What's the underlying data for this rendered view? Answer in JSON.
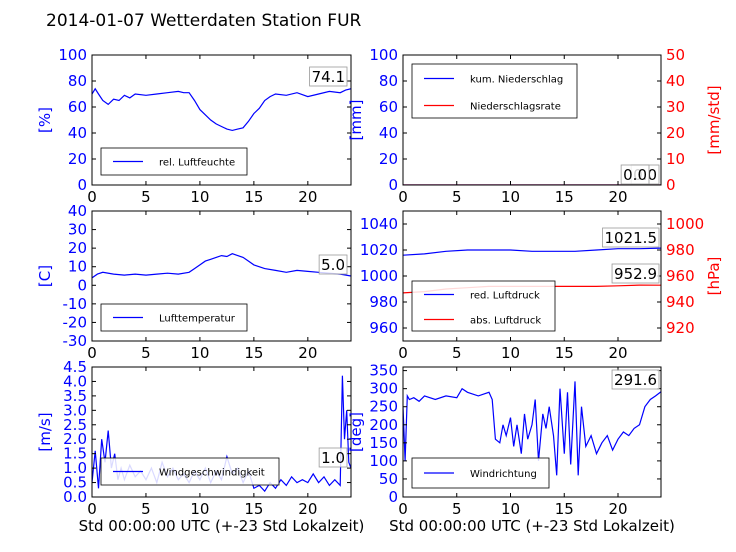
{
  "title": "2014-01-07 Wetterdaten Station FUR",
  "xlabel": "Std 00:00:00 UTC (+-23 Std Lokalzeit)",
  "colors": {
    "blue": "#0000ff",
    "red": "#ff0000"
  },
  "chart_data": [
    {
      "type": "line",
      "ylabel": "[%]",
      "ylim": [
        0,
        100
      ],
      "yticks": [
        0,
        20,
        40,
        60,
        80,
        100
      ],
      "xlim": [
        0,
        24
      ],
      "xticks": [
        0,
        5,
        10,
        15,
        20
      ],
      "legend": "bottom-left",
      "last_value_label": "74.1",
      "series": [
        {
          "name": "rel. Luftfeuchte",
          "color": "#0000ff",
          "x": [
            0,
            0.3,
            0.6,
            1,
            1.5,
            2,
            2.5,
            3,
            3.5,
            4,
            5,
            6,
            7,
            8,
            8.5,
            9,
            9.5,
            10,
            10.5,
            11,
            11.5,
            12,
            12.5,
            13,
            13.5,
            14,
            14.5,
            15,
            15.5,
            16,
            16.5,
            17,
            18,
            19,
            20,
            21,
            22,
            23,
            23.5,
            24
          ],
          "y": [
            70,
            74,
            70,
            65,
            62,
            66,
            65,
            69,
            67,
            70,
            69,
            70,
            71,
            72,
            71,
            71,
            65,
            58,
            54,
            50,
            47,
            45,
            43,
            42,
            43,
            44,
            49,
            55,
            59,
            65,
            68,
            70,
            69,
            71,
            68,
            70,
            72,
            71,
            73,
            74.1
          ]
        }
      ]
    },
    {
      "type": "line",
      "ylabel": "[mm]",
      "ylim": [
        0,
        100
      ],
      "yticks": [
        0,
        20,
        40,
        60,
        80,
        100
      ],
      "ylabel2": "[mm/std]",
      "ylim2": [
        0,
        50
      ],
      "yticks2": [
        0,
        10,
        20,
        30,
        40,
        50
      ],
      "xlim": [
        0,
        24
      ],
      "xticks": [
        0,
        5,
        10,
        15,
        20
      ],
      "legend": "top-left",
      "last_value_label": "0.0",
      "last_value_label2": "0.0",
      "series": [
        {
          "name": "kum. Niederschlag",
          "color": "#0000ff",
          "axis": "left",
          "x": [
            0,
            24
          ],
          "y": [
            0,
            0
          ]
        },
        {
          "name": "Niederschlagsrate",
          "color": "#ff0000",
          "axis": "right",
          "x": [
            0,
            24
          ],
          "y": [
            0,
            0
          ]
        }
      ]
    },
    {
      "type": "line",
      "ylabel": "[C]",
      "ylim": [
        -30,
        40
      ],
      "yticks": [
        -30,
        -20,
        -10,
        0,
        10,
        20,
        30,
        40
      ],
      "xlim": [
        0,
        24
      ],
      "xticks": [
        0,
        5,
        10,
        15,
        20
      ],
      "legend": "bottom-left",
      "last_value_label": "5.0",
      "series": [
        {
          "name": "Lufttemperatur",
          "color": "#0000ff",
          "x": [
            0,
            0.5,
            1,
            2,
            3,
            4,
            5,
            6,
            7,
            8,
            9,
            9.5,
            10,
            10.5,
            11,
            11.5,
            12,
            12.5,
            13,
            13.5,
            14,
            14.5,
            15,
            16,
            17,
            18,
            19,
            20,
            21,
            22,
            23,
            24
          ],
          "y": [
            4,
            6,
            7,
            6,
            5.5,
            6,
            5.5,
            6,
            6.5,
            6,
            7,
            9,
            11,
            13,
            14,
            15,
            16,
            15.5,
            17,
            16,
            15,
            13,
            11,
            9,
            8,
            7,
            8,
            7.5,
            7,
            6.5,
            6,
            5
          ]
        }
      ]
    },
    {
      "type": "line",
      "ylim": [
        950,
        1050
      ],
      "yticks": [
        960,
        980,
        1000,
        1020,
        1040
      ],
      "ylabel2": "[hPa]",
      "ylim2": [
        910,
        1010
      ],
      "yticks2": [
        920,
        940,
        960,
        980,
        1000
      ],
      "xlim": [
        0,
        24
      ],
      "xticks": [
        0,
        5,
        10,
        15,
        20
      ],
      "legend": "bottom-left",
      "last_value_label": "1021.5",
      "last_value_label2": "952.9",
      "series": [
        {
          "name": "red. Luftdruck",
          "color": "#0000ff",
          "axis": "left",
          "x": [
            0,
            2,
            4,
            6,
            8,
            10,
            12,
            14,
            16,
            18,
            20,
            22,
            24
          ],
          "y": [
            1016,
            1017,
            1019,
            1020,
            1020,
            1020,
            1019,
            1019,
            1019,
            1020,
            1021,
            1021,
            1021.5
          ]
        },
        {
          "name": "abs. Luftdruck",
          "color": "#ff0000",
          "axis": "right",
          "x": [
            0,
            2,
            4,
            6,
            8,
            10,
            12,
            14,
            16,
            18,
            20,
            22,
            24
          ],
          "y": [
            947,
            948,
            950,
            951,
            952,
            952,
            952,
            952,
            952,
            952,
            952.5,
            953,
            952.9
          ]
        }
      ]
    },
    {
      "type": "line",
      "ylabel": "[m/s]",
      "ylim": [
        0,
        4.5
      ],
      "yticks": [
        0,
        0.5,
        1,
        1.5,
        2,
        2.5,
        3,
        3.5,
        4,
        4.5
      ],
      "ytick_labels": [
        "0.0",
        "0.5",
        "1.0",
        "1.5",
        "2.0",
        "2.5",
        "3.0",
        "3.5",
        "4.0",
        "4.5"
      ],
      "xlim": [
        0,
        24
      ],
      "xticks": [
        0,
        5,
        10,
        15,
        20
      ],
      "legend": "bottom-center",
      "last_value_label": "1.0",
      "series": [
        {
          "name": "Windgeschwindigkeit",
          "color": "#0000ff",
          "x": [
            0,
            0.3,
            0.6,
            0.9,
            1.2,
            1.5,
            1.8,
            2.1,
            2.4,
            2.7,
            3,
            3.5,
            4,
            4.5,
            5,
            5.5,
            6,
            6.5,
            7,
            7.5,
            8,
            8.5,
            9,
            9.5,
            10,
            10.5,
            11,
            11.5,
            12,
            12.5,
            13,
            13.5,
            14,
            14.5,
            15,
            15.5,
            16,
            16.5,
            17,
            17.5,
            18,
            18.5,
            19,
            19.5,
            20,
            20.5,
            21,
            21.5,
            22,
            22.5,
            23,
            23.2,
            23.4,
            23.6,
            23.8,
            24
          ],
          "y": [
            0.5,
            1.6,
            0.3,
            2.0,
            1.2,
            2.3,
            1.0,
            1.5,
            0.6,
            1.0,
            0.6,
            1.1,
            0.7,
            0.9,
            0.6,
            1.0,
            0.5,
            1.2,
            0.7,
            1.0,
            0.6,
            0.8,
            0.5,
            0.9,
            0.6,
            1.0,
            0.5,
            0.9,
            0.6,
            1.4,
            0.8,
            1.0,
            0.5,
            0.9,
            0.3,
            0.4,
            0.2,
            0.5,
            0.3,
            0.6,
            0.4,
            0.7,
            0.5,
            0.6,
            0.5,
            0.8,
            0.5,
            0.7,
            0.4,
            0.6,
            0.4,
            4.2,
            2.0,
            3.0,
            1.2,
            1.0
          ]
        }
      ]
    },
    {
      "type": "line",
      "ylabel": "[deg]",
      "ylim": [
        0,
        360
      ],
      "yticks": [
        0,
        50,
        100,
        150,
        200,
        250,
        300,
        350
      ],
      "xlim": [
        0,
        24
      ],
      "xticks": [
        0,
        5,
        10,
        15,
        20
      ],
      "legend": "bottom-left",
      "last_value_label": "291.6",
      "series": [
        {
          "name": "Windrichtung",
          "color": "#0000ff",
          "x": [
            0,
            0.2,
            0.4,
            0.6,
            1,
            1.5,
            2,
            3,
            4,
            5,
            5.5,
            6,
            7,
            8,
            8.3,
            8.6,
            9,
            9.3,
            9.6,
            10,
            10.3,
            10.6,
            11,
            11.3,
            11.6,
            12,
            12.3,
            12.6,
            13,
            13.3,
            13.6,
            14,
            14.3,
            14.6,
            15,
            15.3,
            15.6,
            16,
            16.3,
            16.6,
            17,
            17.5,
            18,
            18.5,
            19,
            19.5,
            20,
            20.5,
            21,
            21.5,
            22,
            22.5,
            23,
            23.5,
            24
          ],
          "y": [
            250,
            100,
            280,
            270,
            275,
            265,
            280,
            270,
            280,
            275,
            300,
            290,
            280,
            290,
            270,
            160,
            150,
            200,
            170,
            220,
            140,
            200,
            120,
            230,
            160,
            200,
            270,
            100,
            230,
            190,
            250,
            170,
            60,
            300,
            120,
            290,
            90,
            320,
            60,
            250,
            140,
            170,
            120,
            150,
            170,
            130,
            160,
            180,
            170,
            190,
            200,
            250,
            270,
            280,
            291.6
          ]
        }
      ]
    }
  ]
}
